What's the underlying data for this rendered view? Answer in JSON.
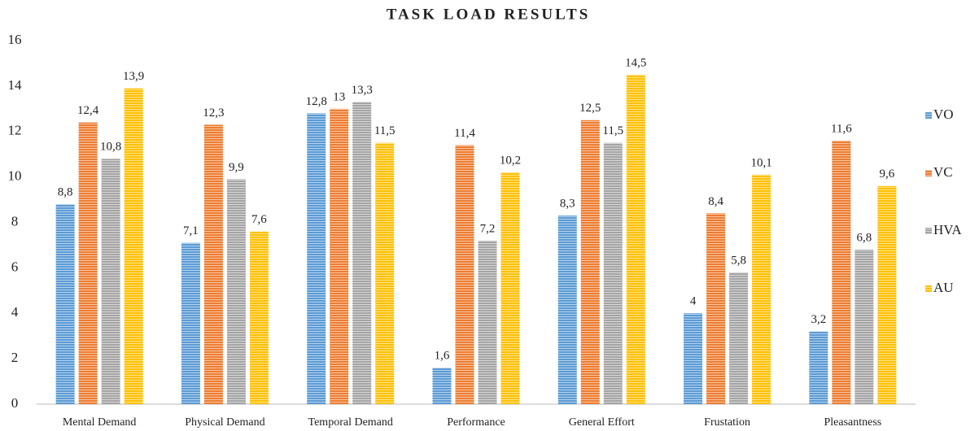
{
  "chart_data": {
    "type": "bar",
    "title": "TASK LOAD RESULTS",
    "categories": [
      "Mental Demand",
      "Physical Demand",
      "Temporal Demand",
      "Performance",
      "General Effort",
      "Frustation",
      "Pleasantness"
    ],
    "series": [
      {
        "name": "VO",
        "color": "#5b9bd5",
        "values": [
          8.8,
          7.1,
          12.8,
          1.6,
          8.3,
          4,
          3.2
        ],
        "value_labels": [
          "8,8",
          "7,1",
          "12,8",
          "1,6",
          "8,3",
          "4",
          "3,2"
        ]
      },
      {
        "name": "VC",
        "color": "#ed7d31",
        "values": [
          12.4,
          12.3,
          13,
          11.4,
          12.5,
          8.4,
          11.6
        ],
        "value_labels": [
          "12,4",
          "12,3",
          "13",
          "11,4",
          "12,5",
          "8,4",
          "11,6"
        ]
      },
      {
        "name": "HVA",
        "color": "#a5a5a5",
        "values": [
          10.8,
          9.9,
          13.3,
          7.2,
          11.5,
          5.8,
          6.8
        ],
        "value_labels": [
          "10,8",
          "9,9",
          "13,3",
          "7,2",
          "11,5",
          "5,8",
          "6,8"
        ]
      },
      {
        "name": "AU",
        "color": "#ffc000",
        "values": [
          13.9,
          7.6,
          11.5,
          10.2,
          14.5,
          10.1,
          9.6
        ],
        "value_labels": [
          "13,9",
          "7,6",
          "11,5",
          "10,2",
          "14,5",
          "10,1",
          "9,6"
        ]
      }
    ],
    "ylim": [
      0,
      16
    ],
    "yticks": [
      0,
      2,
      4,
      6,
      8,
      10,
      12,
      14,
      16
    ],
    "grid": false,
    "legend": "right"
  }
}
